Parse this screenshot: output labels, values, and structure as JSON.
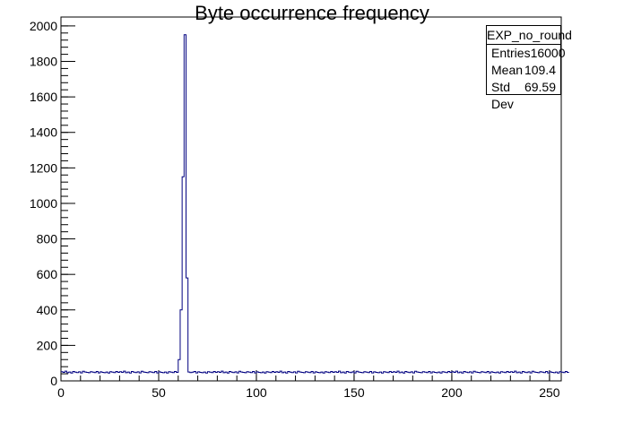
{
  "chart_data": {
    "type": "histogram",
    "title": "Byte occurrence frequency",
    "xlabel": "",
    "ylabel": "",
    "xlim": [
      0,
      256
    ],
    "ylim": [
      0,
      2050
    ],
    "x_ticks": [
      0,
      50,
      100,
      150,
      200,
      250
    ],
    "y_ticks": [
      0,
      200,
      400,
      600,
      800,
      1000,
      1200,
      1400,
      1600,
      1800,
      2000
    ],
    "bin_width": 1,
    "baseline_counts": [
      52,
      48,
      55,
      46,
      50,
      44,
      53,
      49,
      47,
      51,
      45,
      54,
      50,
      48,
      46,
      52,
      49,
      47,
      53,
      45,
      51,
      48,
      46,
      50,
      44,
      52,
      49,
      47,
      53,
      48
    ],
    "counts": [
      52,
      48,
      55,
      46,
      50,
      44,
      53,
      49,
      47,
      51,
      45,
      54,
      50,
      48,
      46,
      52,
      49,
      47,
      53,
      45,
      51,
      48,
      46,
      50,
      44,
      52,
      49,
      47,
      53,
      48,
      52,
      48,
      55,
      46,
      50,
      44,
      53,
      49,
      47,
      51,
      45,
      54,
      50,
      48,
      46,
      52,
      49,
      47,
      53,
      45,
      51,
      48,
      46,
      50,
      44,
      52,
      49,
      47,
      53,
      48,
      120,
      400,
      1150,
      1950,
      580,
      50,
      47,
      49,
      53,
      45,
      51,
      48,
      46,
      50,
      44,
      52,
      49,
      47,
      53,
      48,
      52,
      48,
      55,
      46,
      50,
      44,
      53,
      49,
      47,
      51,
      45,
      54,
      50,
      48,
      46,
      52,
      49,
      47,
      53,
      45,
      51,
      48,
      46,
      50,
      44,
      52,
      49,
      47,
      53,
      48,
      52,
      48,
      55,
      46,
      50,
      44,
      53,
      49,
      47,
      51,
      45,
      54,
      50,
      48,
      46,
      52,
      49,
      47,
      53,
      45,
      51,
      48,
      46,
      50,
      44,
      52,
      49,
      47,
      53,
      48,
      52,
      48,
      55,
      46,
      50,
      44,
      53,
      49,
      47,
      51,
      45,
      54,
      50,
      48,
      46,
      52,
      49,
      47,
      53,
      45,
      51,
      48,
      46,
      50,
      44,
      52,
      49,
      47,
      53,
      48,
      52,
      48,
      55,
      46,
      50,
      44,
      53,
      49,
      47,
      51,
      45,
      54,
      50,
      48,
      46,
      52,
      49,
      47,
      53,
      45,
      51,
      48,
      46,
      50,
      44,
      52,
      49,
      47,
      53,
      48,
      52,
      48,
      55,
      46,
      50,
      44,
      53,
      49,
      47,
      51,
      45,
      54,
      50,
      48,
      46,
      52,
      49,
      47,
      53,
      45,
      51,
      48,
      46,
      50,
      44,
      52,
      49,
      47,
      53,
      48,
      52,
      48,
      55,
      46,
      50,
      44,
      53,
      49,
      47,
      51,
      45,
      54,
      50,
      48,
      46,
      52,
      49,
      47,
      53,
      45,
      51,
      48,
      46,
      50,
      44,
      52,
      49,
      47,
      53,
      48
    ],
    "line_color": "#000080",
    "grid": false,
    "stats_box": {
      "name": "EXP_no_round",
      "rows": [
        {
          "label": "Entries",
          "value": "16000"
        },
        {
          "label": "Mean",
          "value": "109.4"
        },
        {
          "label": "Std Dev",
          "value": "69.59"
        }
      ],
      "placement": "top-right"
    }
  }
}
